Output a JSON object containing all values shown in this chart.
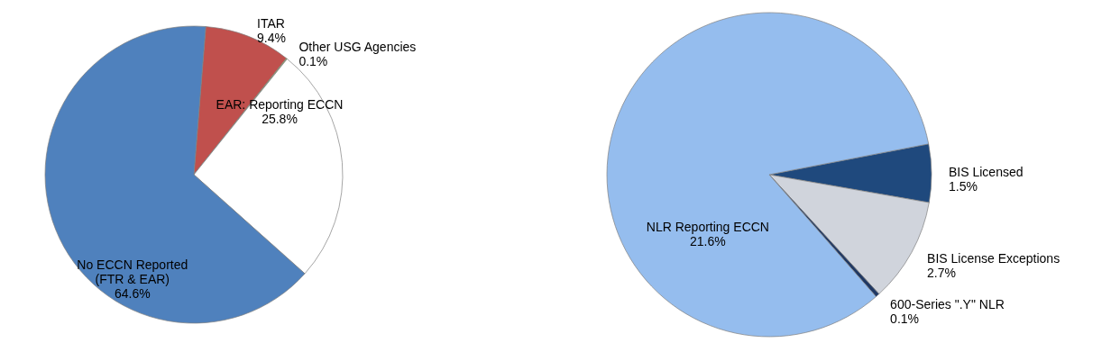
{
  "chart_data": [
    {
      "type": "pie",
      "categories": [
        "ITAR",
        "Other USG Agencies",
        "EAR: Reporting ECCN",
        "No ECCN Reported (FTR & EAR)"
      ],
      "values": [
        9.4,
        0.1,
        25.8,
        64.6
      ],
      "colors": [
        "#c0504d",
        "#9bbb59",
        "#ffffff",
        "#4f81bd"
      ],
      "value_labels": [
        "9.4%",
        "0.1%",
        "25.8%",
        "64.6%"
      ]
    },
    {
      "type": "pie",
      "categories": [
        "BIS Licensed",
        "BIS License Exceptions",
        "600-Series \".Y\" NLR",
        "NLR Reporting ECCN"
      ],
      "values": [
        1.5,
        2.7,
        0.1,
        21.6
      ],
      "colors": [
        "#1f497d",
        "#d0d4dc",
        "#1f3864",
        "#95bdee"
      ],
      "value_labels": [
        "1.5%",
        "2.7%",
        "0.1%",
        "21.6%"
      ]
    }
  ]
}
